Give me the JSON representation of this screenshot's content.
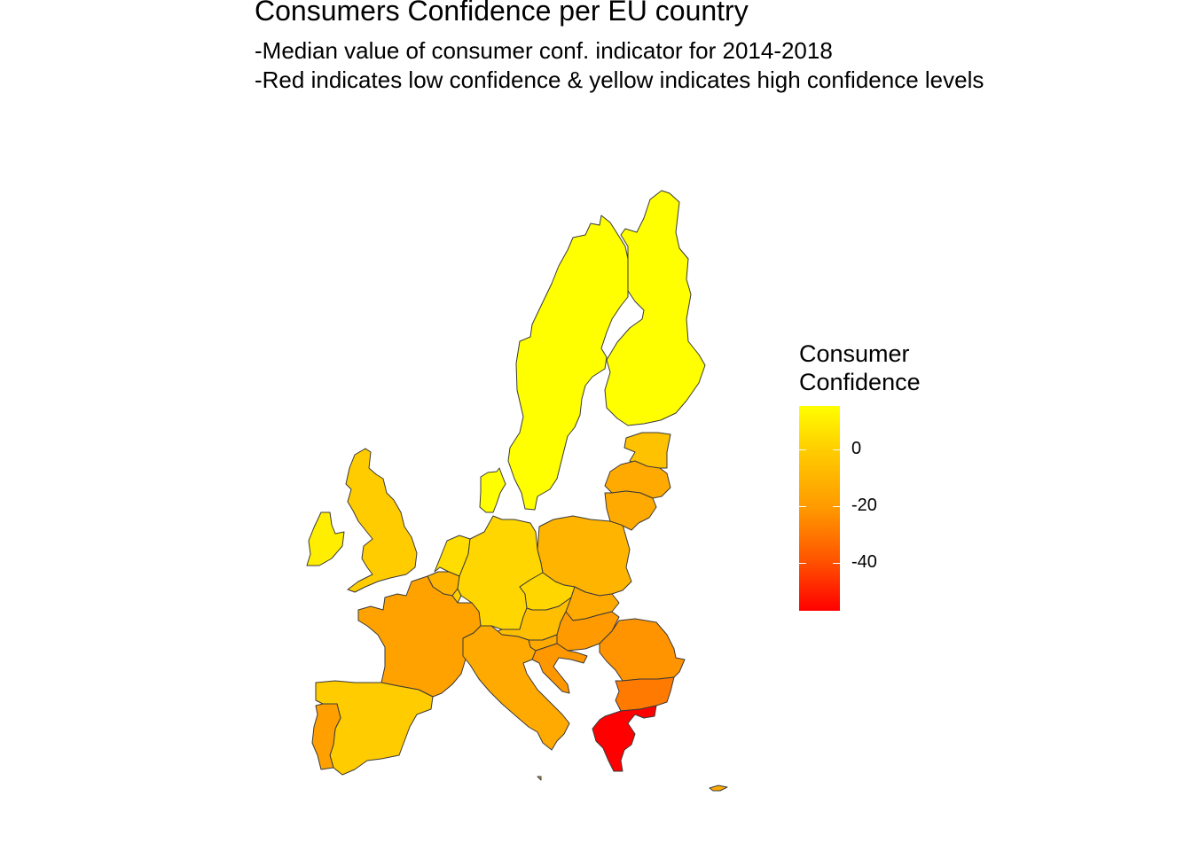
{
  "title": "Consumers Confidence per EU country",
  "subtitle_line1": "-Median value of consumer conf. indicator for 2014-2018",
  "subtitle_line2": "-Red indicates low confidence & yellow indicates high confidence levels",
  "legend": {
    "title_line1": "Consumer",
    "title_line2": "Confidence",
    "ticks": [
      "0",
      "-20",
      "-40"
    ],
    "low_color": "#ff0000",
    "high_color": "#ffff00"
  },
  "colors": {
    "sweden": "#ffff00",
    "finland": "#ffff00",
    "denmark": "#ffff00",
    "ireland": "#ffee00",
    "netherlands": "#ffdd00",
    "germany": "#ffd600",
    "czechia": "#ffd600",
    "uk": "#ffcc00",
    "spain": "#ffcc00",
    "estonia": "#ffc200",
    "luxembourg": "#ffd000",
    "austria": "#ffbe00",
    "poland": "#ffb400",
    "belgium": "#ffb400",
    "latvia": "#ffaa00",
    "lithuania": "#ffaa00",
    "slovakia": "#ffaa00",
    "italy": "#ffaa00",
    "france": "#ffa200",
    "portugal": "#ffa000",
    "slovenia": "#ffaa00",
    "hungary": "#ff9a00",
    "croatia": "#ff9800",
    "romania": "#ff9400",
    "bulgaria": "#ff7a00",
    "cyprus": "#ffaa00",
    "malta": "#ffaa00",
    "greece": "#ff0000"
  }
}
